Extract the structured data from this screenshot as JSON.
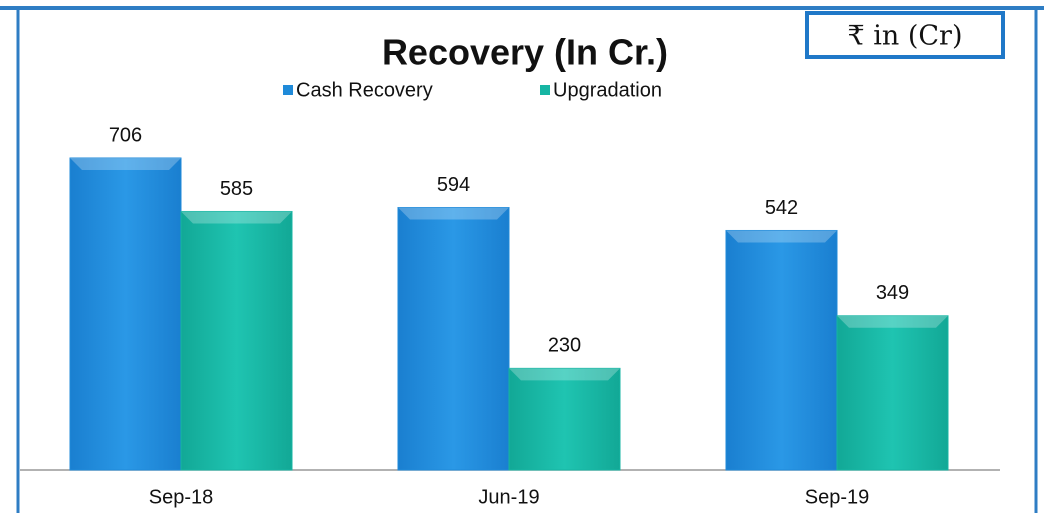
{
  "chart_data": {
    "type": "bar",
    "title": "Recovery (In Cr.)",
    "annotation": "₹ in (Cr)",
    "categories": [
      "Sep-18",
      "Jun-19",
      "Sep-19"
    ],
    "series": [
      {
        "name": "Cash Recovery",
        "color": "#1f8ad9",
        "values": [
          706,
          594,
          542
        ]
      },
      {
        "name": "Upgradation",
        "color": "#16b5a3",
        "values": [
          585,
          230,
          349
        ]
      }
    ]
  }
}
